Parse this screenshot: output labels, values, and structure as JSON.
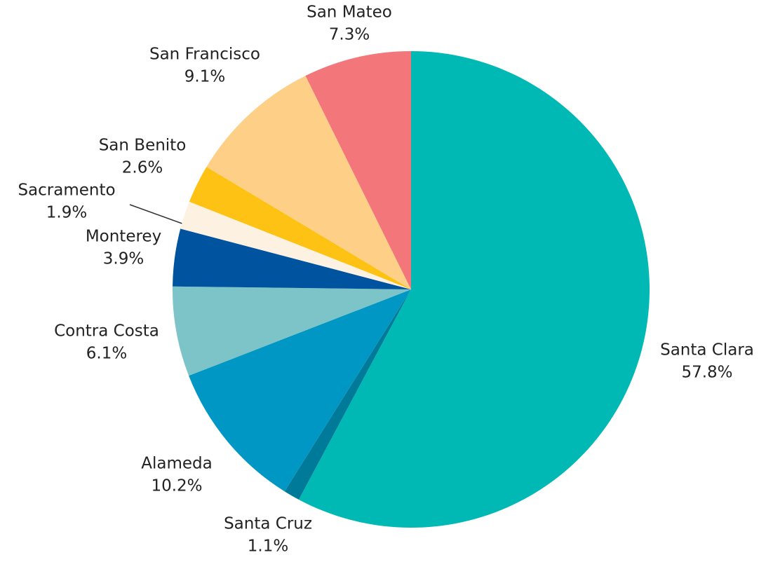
{
  "chart_data": {
    "type": "pie",
    "categories": [
      "Santa Clara",
      "Santa Cruz",
      "Alameda",
      "Contra Costa",
      "Monterey",
      "Sacramento",
      "San Benito",
      "San Francisco",
      "San Mateo"
    ],
    "values": [
      57.8,
      1.1,
      10.2,
      6.1,
      3.9,
      1.9,
      2.6,
      9.1,
      7.3
    ],
    "value_labels": [
      "57.8%",
      "1.1%",
      "10.2%",
      "6.1%",
      "3.9%",
      "1.9%",
      "2.6%",
      "9.1%",
      "7.3%"
    ],
    "colors": [
      "#00b8b4",
      "#007a99",
      "#0097c4",
      "#7cc4c8",
      "#00539f",
      "#fdf1e2",
      "#fec214",
      "#fecf87",
      "#f2767a"
    ]
  }
}
